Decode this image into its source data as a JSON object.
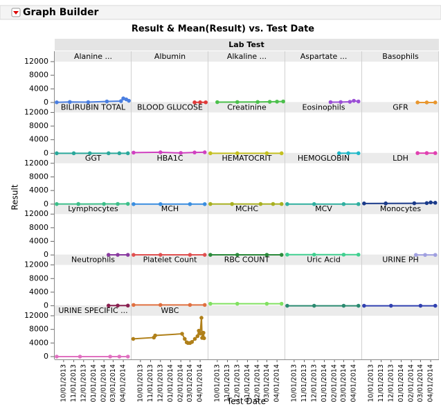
{
  "window_title": "Graph Builder",
  "chart_data": {
    "type": "line",
    "title": "Result & Mean(Result) vs. Test Date",
    "facet_label": "Lab Test",
    "y_label": "Result",
    "x_label": "Test Date",
    "xlim": [
      "09/06/2013",
      "04/24/2014"
    ],
    "xticks": [
      "10/01/2013",
      "11/01/2013",
      "12/01/2013",
      "01/01/2014",
      "02/01/2014",
      "03/01/2014",
      "04/01/2014"
    ],
    "ylim": [
      0,
      12000
    ],
    "yticks": [
      0,
      4000,
      8000,
      12000
    ],
    "grid": true,
    "columns": 5,
    "panels": [
      {
        "name": "Alanine ...",
        "color": "#4a7ee0",
        "x": [
          "09/10/2013",
          "10/20/2013",
          "12/15/2013",
          "02/10/2014",
          "03/25/2014",
          "04/01/2014",
          "04/10/2014",
          "04/18/2014"
        ],
        "values": [
          50,
          150,
          100,
          300,
          400,
          1200,
          900,
          500
        ]
      },
      {
        "name": "Albumin",
        "color": "#e03b3b",
        "x": [
          "03/15/2014",
          "04/01/2014",
          "04/18/2014"
        ],
        "values": [
          40,
          60,
          50
        ]
      },
      {
        "name": "Alkaline ...",
        "color": "#4cc04c",
        "x": [
          "10/01/2013",
          "12/01/2013",
          "02/01/2014",
          "03/10/2014",
          "04/01/2014",
          "04/20/2014"
        ],
        "values": [
          100,
          120,
          150,
          200,
          250,
          300
        ]
      },
      {
        "name": "Aspartate ...",
        "color": "#9b4fd6",
        "x": [
          "01/20/2014",
          "02/20/2014",
          "03/20/2014",
          "04/01/2014",
          "04/15/2014"
        ],
        "values": [
          100,
          120,
          200,
          500,
          300
        ]
      },
      {
        "name": "Basophils",
        "color": "#e8962e",
        "x": [
          "02/20/2014",
          "03/20/2014",
          "04/15/2014"
        ],
        "values": [
          10,
          10,
          10
        ]
      },
      {
        "name": "BILIRUBIN TOTAL",
        "color": "#2aa89b",
        "x": [
          "09/10/2013",
          "11/01/2013",
          "12/20/2013",
          "02/15/2014",
          "03/20/2014",
          "04/15/2014"
        ],
        "values": [
          10,
          10,
          10,
          10,
          10,
          10
        ]
      },
      {
        "name": "BLOOD GLUCOSE",
        "color": "#d040c0",
        "x": [
          "09/10/2013",
          "12/01/2013",
          "02/01/2014",
          "03/15/2014",
          "04/15/2014"
        ],
        "values": [
          200,
          300,
          100,
          250,
          300
        ]
      },
      {
        "name": "Creatinine",
        "color": "#c4c020",
        "x": [
          "09/10/2013",
          "12/01/2013",
          "03/01/2014",
          "04/15/2014"
        ],
        "values": [
          10,
          10,
          10,
          10
        ]
      },
      {
        "name": "Eosinophils",
        "color": "#20b8c8",
        "x": [
          "02/15/2014",
          "03/15/2014",
          "04/15/2014"
        ],
        "values": [
          20,
          20,
          20
        ]
      },
      {
        "name": "GFR",
        "color": "#e040b0",
        "x": [
          "02/20/2014",
          "03/20/2014",
          "04/15/2014"
        ],
        "values": [
          60,
          60,
          60
        ]
      },
      {
        "name": "GGT",
        "color": "#3cbf8a",
        "x": [
          "09/10/2013",
          "11/15/2013",
          "02/01/2014",
          "03/15/2014",
          "04/15/2014"
        ],
        "values": [
          30,
          40,
          50,
          60,
          80
        ]
      },
      {
        "name": "HBA1C",
        "color": "#3a8ee0",
        "x": [
          "09/10/2013",
          "12/01/2013",
          "03/01/2014",
          "04/15/2014"
        ],
        "values": [
          7,
          7,
          7,
          7
        ]
      },
      {
        "name": "HEMATOCRIT",
        "color": "#a8b020",
        "x": [
          "09/10/2013",
          "11/15/2013",
          "02/10/2014",
          "03/20/2014",
          "04/15/2014"
        ],
        "values": [
          40,
          40,
          40,
          40,
          40
        ]
      },
      {
        "name": "HEMOGLOBIN",
        "color": "#30b0a0",
        "x": [
          "09/10/2013",
          "12/01/2013",
          "03/01/2014",
          "04/15/2014"
        ],
        "values": [
          13,
          13,
          13,
          13
        ]
      },
      {
        "name": "LDH",
        "color": "#1a3a8a",
        "x": [
          "09/10/2013",
          "11/15/2013",
          "02/10/2014",
          "03/20/2014",
          "04/01/2014",
          "04/15/2014"
        ],
        "values": [
          200,
          220,
          250,
          300,
          500,
          400
        ]
      },
      {
        "name": "Lymphocytes",
        "color": "#8a3aa0",
        "x": [
          "02/15/2014",
          "03/15/2014",
          "04/15/2014"
        ],
        "values": [
          30,
          30,
          30
        ]
      },
      {
        "name": "MCH",
        "color": "#e05050",
        "x": [
          "09/10/2013",
          "12/01/2013",
          "03/01/2014",
          "04/15/2014"
        ],
        "values": [
          30,
          30,
          30,
          30
        ]
      },
      {
        "name": "MCHC",
        "color": "#2a8a3a",
        "x": [
          "09/10/2013",
          "12/01/2013",
          "03/01/2014",
          "04/15/2014"
        ],
        "values": [
          33,
          33,
          33,
          33
        ]
      },
      {
        "name": "MCV",
        "color": "#40d090",
        "x": [
          "09/10/2013",
          "12/01/2013",
          "03/01/2014",
          "04/15/2014"
        ],
        "values": [
          90,
          90,
          90,
          90
        ]
      },
      {
        "name": "Monocytes",
        "color": "#a0a0e0",
        "x": [
          "02/15/2014",
          "03/15/2014",
          "04/15/2014"
        ],
        "values": [
          8,
          8,
          8
        ]
      },
      {
        "name": "Neutrophils",
        "color": "#8a2050",
        "x": [
          "02/15/2014",
          "03/15/2014",
          "04/15/2014"
        ],
        "values": [
          60,
          60,
          60
        ]
      },
      {
        "name": "Platelet Count",
        "color": "#e07040",
        "x": [
          "09/10/2013",
          "12/01/2013",
          "03/01/2014",
          "04/15/2014"
        ],
        "values": [
          250,
          250,
          250,
          250
        ]
      },
      {
        "name": "RBC COUNT",
        "color": "#80e060",
        "x": [
          "09/10/2013",
          "12/01/2013",
          "03/01/2014",
          "04/15/2014"
        ],
        "values": [
          600,
          600,
          600,
          600
        ]
      },
      {
        "name": "Uric Acid",
        "color": "#2a8a70",
        "x": [
          "09/10/2013",
          "12/01/2013",
          "03/01/2014",
          "04/15/2014"
        ],
        "values": [
          6,
          6,
          6,
          6
        ]
      },
      {
        "name": "URINE PH",
        "color": "#3040b0",
        "x": [
          "09/10/2013",
          "12/01/2013",
          "03/01/2014",
          "04/15/2014"
        ],
        "values": [
          6,
          6,
          6,
          6
        ]
      },
      {
        "name": "URINE SPECIFIC ...",
        "color": "#e070c0",
        "x": [
          "09/10/2013",
          "11/20/2013",
          "02/20/2014",
          "03/20/2014",
          "04/15/2014"
        ],
        "values": [
          1,
          1,
          1,
          1,
          1
        ]
      },
      {
        "name": "WBC",
        "color": "#b0801a",
        "x": [
          "09/09/2013",
          "11/11/2013",
          "11/15/2013",
          "02/05/2014",
          "02/13/2014",
          "02/19/2014",
          "02/23/2014",
          "03/01/2014",
          "03/07/2014",
          "03/16/2014",
          "03/24/2014",
          "03/28/2014",
          "04/01/2014",
          "04/05/2014",
          "04/07/2014",
          "04/11/2014",
          "04/13/2014"
        ],
        "values": [
          5200,
          5600,
          6200,
          6700,
          5200,
          4200,
          4000,
          4000,
          4300,
          5200,
          6000,
          7600,
          6800,
          11400,
          5500,
          7000,
          5400
        ]
      }
    ]
  }
}
